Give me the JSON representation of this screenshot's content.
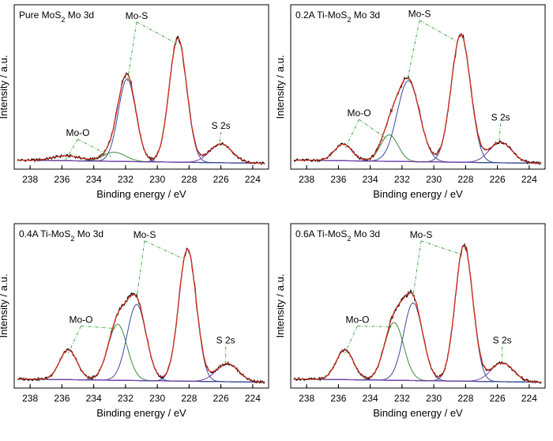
{
  "chart_data": [
    {
      "type": "line",
      "title": "Pure MoS",
      "title_sub": "2",
      "title_suffix": " Mo 3d",
      "xlabel": "Binding energy / eV",
      "ylabel": "Intensity / a.u.",
      "xlim": [
        239,
        223
      ],
      "xticks": [
        238,
        236,
        234,
        232,
        230,
        228,
        226,
        224
      ],
      "x_reversed": true,
      "grid": false,
      "peaks": [
        {
          "name": "Mo-O",
          "center": 235.7,
          "height": 6,
          "width": 0.85,
          "color": "#3a4a9a"
        },
        {
          "name": "Mo-O",
          "center": 232.7,
          "height": 11,
          "width": 0.7,
          "color": "#3c8a3c"
        },
        {
          "name": "Mo-S",
          "center": 231.9,
          "height": 100,
          "width": 0.55,
          "color": "#3a4a9a"
        },
        {
          "name": "Mo-S",
          "center": 228.7,
          "height": 150,
          "width": 0.55,
          "color": "#3a4a9a"
        },
        {
          "name": "S 2s",
          "center": 226.0,
          "height": 23,
          "width": 0.7,
          "color": "#7a3aa8"
        }
      ],
      "annotations": [
        {
          "text": "Mo-O",
          "x": 235.0,
          "y": 36,
          "targets": [
            [
              235.8,
              6
            ],
            [
              232.9,
              11
            ]
          ]
        },
        {
          "text": "Mo-S",
          "x": 231.3,
          "y": 178,
          "targets": [
            [
              231.9,
              100
            ],
            [
              228.8,
              148
            ]
          ]
        },
        {
          "text": "S 2s",
          "x": 226.0,
          "y": 45,
          "targets": [
            [
              226.1,
              24
            ]
          ]
        }
      ],
      "ylim": [
        -4,
        195
      ]
    },
    {
      "type": "line",
      "title": "0.2A Ti-MoS",
      "title_sub": "2",
      "title_suffix": " Mo 3d",
      "xlabel": "Binding energy / eV",
      "ylabel": "Intensity / a.u.",
      "xlim": [
        239,
        223
      ],
      "xticks": [
        238,
        236,
        234,
        232,
        230,
        228,
        226,
        224
      ],
      "x_reversed": true,
      "grid": false,
      "peaks": [
        {
          "name": "Mo-O",
          "center": 235.7,
          "height": 20,
          "width": 0.55,
          "color": "#3a4a9a"
        },
        {
          "name": "Mo-O",
          "center": 232.8,
          "height": 32,
          "width": 0.55,
          "color": "#3c8a3c"
        },
        {
          "name": "Mo-S",
          "center": 231.6,
          "height": 98,
          "width": 0.7,
          "color": "#3a4a9a"
        },
        {
          "name": "Mo-S",
          "center": 228.3,
          "height": 155,
          "width": 0.6,
          "color": "#3a4a9a"
        },
        {
          "name": "S 2s",
          "center": 225.8,
          "height": 25,
          "width": 0.7,
          "color": "#7a3aa8"
        }
      ],
      "annotations": [
        {
          "text": "Mo-O",
          "x": 234.7,
          "y": 60,
          "targets": [
            [
              235.6,
              20
            ],
            [
              232.9,
              32
            ]
          ]
        },
        {
          "text": "Mo-S",
          "x": 230.9,
          "y": 180,
          "targets": [
            [
              231.7,
              100
            ],
            [
              228.5,
              150
            ]
          ]
        },
        {
          "text": "S 2s",
          "x": 225.8,
          "y": 55,
          "targets": [
            [
              225.9,
              28
            ]
          ]
        }
      ],
      "ylim": [
        -4,
        195
      ]
    },
    {
      "type": "line",
      "title": "0.4A Ti-MoS",
      "title_sub": "2",
      "title_suffix": " Mo 3d",
      "xlabel": "Binding energy / eV",
      "ylabel": "Intensity / a.u.",
      "xlim": [
        239,
        223
      ],
      "xticks": [
        238,
        236,
        234,
        232,
        230,
        228,
        226,
        224
      ],
      "x_reversed": true,
      "grid": false,
      "peaks": [
        {
          "name": "Mo-O",
          "center": 235.6,
          "height": 36,
          "width": 0.55,
          "color": "#3a4a9a"
        },
        {
          "name": "Mo-O",
          "center": 232.5,
          "height": 68,
          "width": 0.6,
          "color": "#3c8a3c"
        },
        {
          "name": "Mo-S",
          "center": 231.3,
          "height": 92,
          "width": 0.6,
          "color": "#3a4a9a"
        },
        {
          "name": "Mo-S",
          "center": 228.1,
          "height": 160,
          "width": 0.55,
          "color": "#3a4a9a"
        },
        {
          "name": "S 2s",
          "center": 225.6,
          "height": 22,
          "width": 0.7,
          "color": "#7a3aa8"
        }
      ],
      "annotations": [
        {
          "text": "Mo-O",
          "x": 234.8,
          "y": 75,
          "targets": [
            [
              235.6,
              38
            ],
            [
              232.6,
              68
            ]
          ]
        },
        {
          "text": "Mo-S",
          "x": 230.8,
          "y": 178,
          "targets": [
            [
              231.3,
              105
            ],
            [
              228.3,
              152
            ]
          ]
        },
        {
          "text": "S 2s",
          "x": 225.7,
          "y": 50,
          "targets": [
            [
              225.7,
              26
            ]
          ]
        }
      ],
      "ylim": [
        -4,
        195
      ]
    },
    {
      "type": "line",
      "title": "0.6A Ti-MoS",
      "title_sub": "2",
      "title_suffix": " Mo 3d",
      "xlabel": "Binding energy / eV",
      "ylabel": "Intensity / a.u.",
      "xlim": [
        239,
        223
      ],
      "xticks": [
        238,
        236,
        234,
        232,
        230,
        228,
        226,
        224
      ],
      "x_reversed": true,
      "grid": false,
      "peaks": [
        {
          "name": "Mo-O",
          "center": 235.6,
          "height": 36,
          "width": 0.55,
          "color": "#3a4a9a"
        },
        {
          "name": "Mo-O",
          "center": 232.5,
          "height": 70,
          "width": 0.6,
          "color": "#3c8a3c"
        },
        {
          "name": "Mo-S",
          "center": 231.3,
          "height": 94,
          "width": 0.6,
          "color": "#3a4a9a"
        },
        {
          "name": "Mo-S",
          "center": 228.1,
          "height": 165,
          "width": 0.55,
          "color": "#3a4a9a"
        },
        {
          "name": "S 2s",
          "center": 225.7,
          "height": 23,
          "width": 0.7,
          "color": "#7a3aa8"
        }
      ],
      "annotations": [
        {
          "text": "Mo-O",
          "x": 234.8,
          "y": 75,
          "targets": [
            [
              235.6,
              38
            ],
            [
              232.6,
              70
            ]
          ]
        },
        {
          "text": "Mo-S",
          "x": 230.8,
          "y": 178,
          "targets": [
            [
              231.3,
              108
            ],
            [
              228.3,
              158
            ]
          ]
        },
        {
          "text": "S 2s",
          "x": 225.7,
          "y": 50,
          "targets": [
            [
              225.7,
              27
            ]
          ]
        }
      ],
      "ylim": [
        -4,
        195
      ]
    }
  ],
  "colors": {
    "experimental": "#000000",
    "envelope": "#e0301e",
    "background": "#6a3aa8",
    "annotation": "#44aa44"
  }
}
